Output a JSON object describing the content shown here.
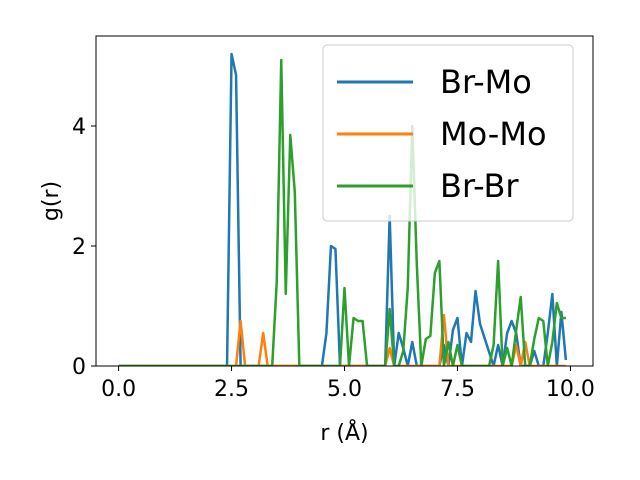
{
  "chart_data": {
    "type": "line",
    "xlabel": "r (Å)",
    "ylabel": "g(r)",
    "xlim": [
      -0.5,
      10.5
    ],
    "ylim": [
      0,
      5.5
    ],
    "xticks": [
      0.0,
      2.5,
      5.0,
      7.5,
      10.0
    ],
    "xtick_labels": [
      "0.0",
      "2.5",
      "5.0",
      "7.5",
      "10.0"
    ],
    "yticks": [
      0,
      2,
      4
    ],
    "ytick_labels": [
      "0",
      "2",
      "4"
    ],
    "grid": false,
    "legend_position": "top-right",
    "series": [
      {
        "name": "Br-Mo",
        "color": "#1f77b4",
        "x": [
          0.0,
          2.4,
          2.5,
          2.6,
          2.7,
          2.8,
          4.5,
          4.6,
          4.7,
          4.8,
          4.9,
          5.9,
          6.0,
          6.1,
          6.2,
          6.3,
          6.4,
          6.5,
          6.6,
          6.7,
          6.8,
          7.0,
          7.1,
          7.2,
          7.3,
          7.4,
          7.5,
          7.6,
          7.7,
          7.8,
          7.9,
          8.0,
          8.3,
          8.4,
          8.5,
          8.6,
          8.7,
          8.8,
          8.9,
          9.0,
          9.1,
          9.2,
          9.3,
          9.4,
          9.5,
          9.6,
          9.7,
          9.8,
          9.9
        ],
        "y": [
          0.0,
          0.0,
          5.2,
          4.85,
          0.0,
          0.0,
          0.0,
          0.55,
          2.0,
          1.95,
          0.0,
          0.0,
          2.5,
          0.0,
          0.55,
          0.3,
          0.0,
          0.4,
          0.0,
          0.0,
          0.0,
          0.0,
          0.0,
          0.35,
          0.0,
          0.6,
          0.8,
          0.0,
          0.55,
          0.4,
          1.25,
          0.7,
          0.0,
          0.35,
          0.0,
          0.55,
          0.75,
          0.55,
          0.0,
          0.0,
          0.0,
          0.25,
          0.0,
          0.0,
          0.55,
          1.2,
          0.0,
          0.9,
          0.1
        ]
      },
      {
        "name": "Mo-Mo",
        "color": "#ff7f0e",
        "x": [
          0.0,
          2.6,
          2.7,
          2.8,
          3.1,
          3.2,
          3.3,
          5.9,
          6.0,
          6.1,
          7.1,
          7.2,
          7.3,
          8.7,
          8.8,
          8.9,
          9.0,
          9.1,
          9.9
        ],
        "y": [
          0.0,
          0.0,
          0.75,
          0.0,
          0.0,
          0.55,
          0.0,
          0.0,
          0.3,
          0.0,
          0.0,
          0.85,
          0.0,
          0.0,
          0.35,
          0.0,
          0.4,
          0.0,
          0.0
        ]
      },
      {
        "name": "Br-Br",
        "color": "#2ca02c",
        "x": [
          0.0,
          3.4,
          3.5,
          3.6,
          3.7,
          3.8,
          3.9,
          4.0,
          4.1,
          4.9,
          5.0,
          5.1,
          5.2,
          5.3,
          5.4,
          5.5,
          5.9,
          6.0,
          6.1,
          6.2,
          6.3,
          6.4,
          6.5,
          6.6,
          6.7,
          6.8,
          6.9,
          7.0,
          7.1,
          7.2,
          7.3,
          7.4,
          7.5,
          7.6,
          7.7,
          7.8,
          8.2,
          8.3,
          8.4,
          8.5,
          8.6,
          8.7,
          8.8,
          8.9,
          9.0,
          9.1,
          9.2,
          9.3,
          9.4,
          9.5,
          9.6,
          9.7,
          9.8,
          9.9
        ],
        "y": [
          0.0,
          0.0,
          1.4,
          5.1,
          1.2,
          3.85,
          2.9,
          0.0,
          0.0,
          0.0,
          1.3,
          0.0,
          0.8,
          0.75,
          0.75,
          0.0,
          0.0,
          0.95,
          0.0,
          0.0,
          0.25,
          1.3,
          4.0,
          1.7,
          0.0,
          0.45,
          0.5,
          1.55,
          1.75,
          0.0,
          0.4,
          0.0,
          0.35,
          0.0,
          0.0,
          0.0,
          0.0,
          0.35,
          1.75,
          0.0,
          0.3,
          0.0,
          0.6,
          1.15,
          0.0,
          0.0,
          0.45,
          0.8,
          0.75,
          0.0,
          0.4,
          1.05,
          0.8,
          0.8
        ]
      }
    ]
  }
}
